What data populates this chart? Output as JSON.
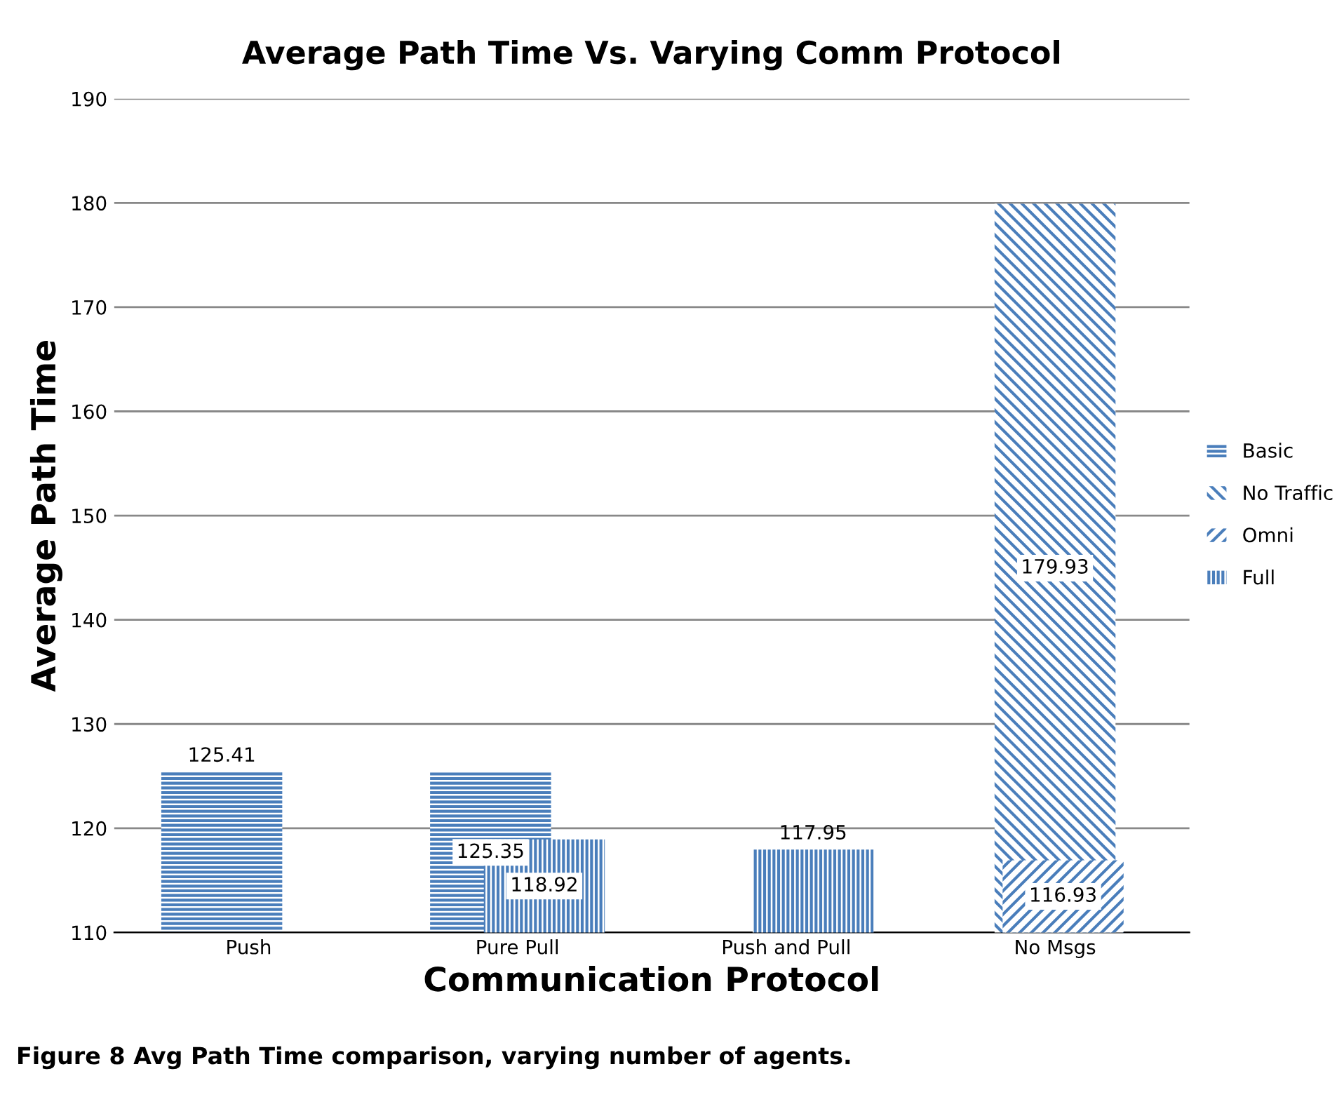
{
  "chart_data": {
    "type": "bar",
    "title": "Average Path Time Vs. Varying Comm Protocol",
    "xlabel": "Communication Protocol",
    "ylabel": "Average Path Time",
    "categories": [
      "Push",
      "Pure Pull",
      "Push and Pull",
      "No Msgs"
    ],
    "series": [
      {
        "name": "Basic",
        "color": "#4a7ebb",
        "values": [
          125.41,
          125.35,
          null,
          null
        ]
      },
      {
        "name": "No Traffic",
        "color": "#4a7ebb",
        "values": [
          null,
          null,
          null,
          179.93
        ]
      },
      {
        "name": "Omni",
        "color": "#4a7ebb",
        "values": [
          null,
          null,
          null,
          116.93
        ]
      },
      {
        "name": "Full",
        "color": "#4a7ebb",
        "values": [
          null,
          118.92,
          117.95,
          null
        ]
      }
    ],
    "ylim": [
      110,
      190
    ],
    "yticks": [
      110,
      120,
      130,
      140,
      150,
      160,
      170,
      180,
      190
    ],
    "grid": "y",
    "legend": "right",
    "data_labels": true,
    "annotations": [
      "Figure 8 Avg Path Time comparison, varying number of agents."
    ]
  }
}
